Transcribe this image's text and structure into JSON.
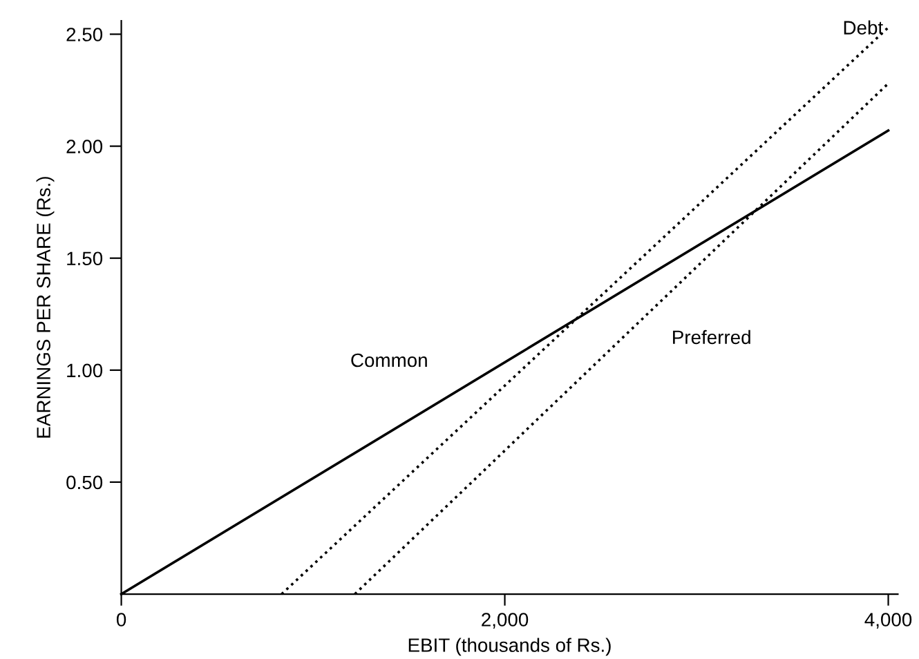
{
  "chart_data": {
    "type": "line",
    "xlabel": "EBIT (thousands of Rs.)",
    "ylabel": "EARNINGS PER SHARE (Rs.)",
    "series": [
      {
        "name": "Common",
        "color": "#000000",
        "line_style": "solid",
        "x": [
          0,
          4000
        ],
        "values": [
          0,
          2.07
        ]
      },
      {
        "name": "Debt",
        "color": "#000000",
        "line_style": "dotted",
        "x": [
          836,
          4000
        ],
        "values": [
          0,
          2.53
        ]
      },
      {
        "name": "Preferred",
        "color": "#000000",
        "line_style": "dotted",
        "x": [
          1218,
          4000
        ],
        "values": [
          0,
          2.28
        ]
      }
    ],
    "xlim": [
      0,
      4050
    ],
    "ylim": [
      0,
      2.56
    ],
    "xticks": [
      0,
      {
        "value": 2000,
        "label": "2,000"
      },
      {
        "value": 4000,
        "label": "4,000"
      }
    ],
    "yticks": [
      {
        "value": 0.5,
        "label": "0.50"
      },
      {
        "value": 1.0,
        "label": "1.00"
      },
      {
        "value": 1.5,
        "label": "1.50"
      },
      {
        "value": 2.0,
        "label": "2.00"
      },
      {
        "value": 2.5,
        "label": "2.50"
      }
    ],
    "grid": false,
    "legend": false,
    "marker": "none"
  }
}
